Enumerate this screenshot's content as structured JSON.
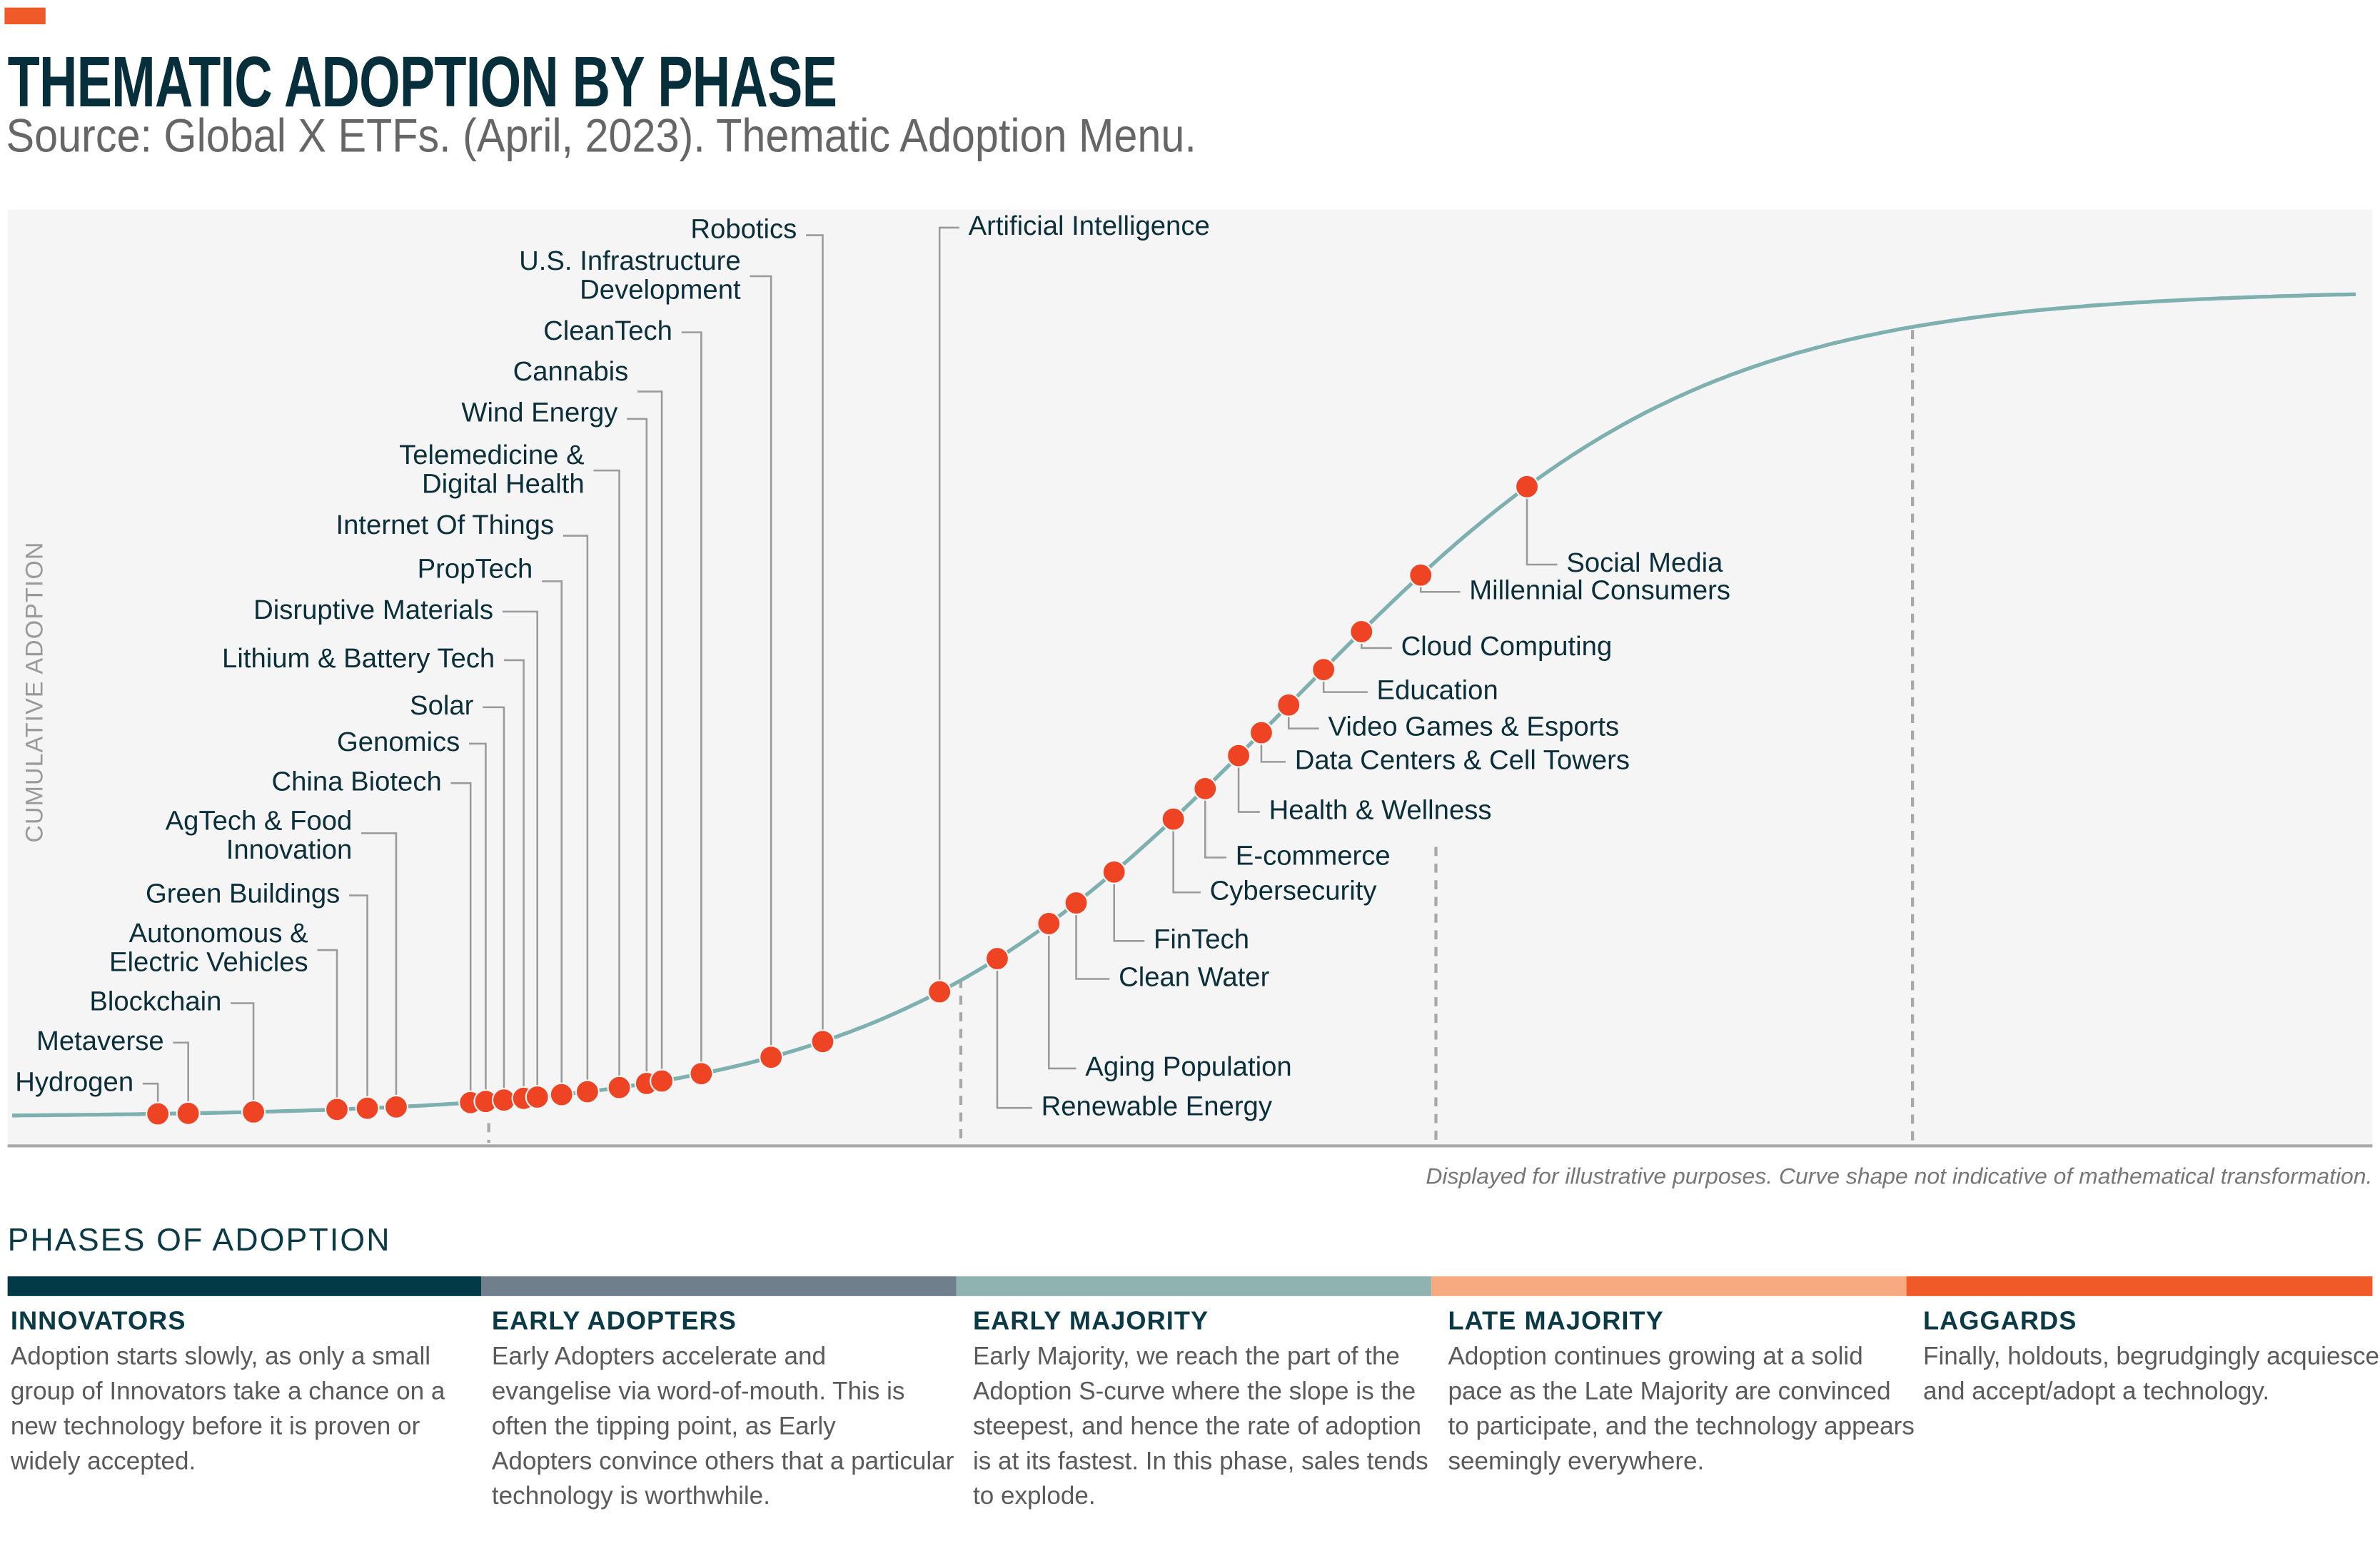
{
  "header": {
    "title": "THEMATIC ADOPTION BY PHASE",
    "source": "Source: Global X ETFs. (April, 2023). Thematic Adoption Menu."
  },
  "chart": {
    "y_axis_label": "CUMULATIVE ADOPTION",
    "footnote": "Displayed for illustrative purposes. Curve shape not indicative of mathematical transformation.",
    "colors": {
      "background": "#f5f5f5",
      "curve": "#7fb0b0",
      "dot": "#ee4423",
      "text": "#0b2f3a",
      "leader": "#9a9a9a",
      "divider": "#a8a8a8"
    },
    "themes": [
      {
        "lines": [
          "Hydrogen"
        ]
      },
      {
        "lines": [
          "Metaverse"
        ]
      },
      {
        "lines": [
          "Blockchain"
        ]
      },
      {
        "lines": [
          "Autonomous &",
          "Electric Vehicles"
        ]
      },
      {
        "lines": [
          "Green Buildings"
        ]
      },
      {
        "lines": [
          "AgTech & Food",
          "Innovation"
        ]
      },
      {
        "lines": [
          "China Biotech"
        ]
      },
      {
        "lines": [
          "Genomics"
        ]
      },
      {
        "lines": [
          "Solar"
        ]
      },
      {
        "lines": [
          "Lithium & Battery Tech"
        ]
      },
      {
        "lines": [
          "Disruptive Materials"
        ]
      },
      {
        "lines": [
          "PropTech"
        ]
      },
      {
        "lines": [
          "Internet Of Things"
        ]
      },
      {
        "lines": [
          "Telemedicine &",
          "Digital Health"
        ]
      },
      {
        "lines": [
          "Wind Energy"
        ]
      },
      {
        "lines": [
          "Cannabis"
        ]
      },
      {
        "lines": [
          "CleanTech"
        ]
      },
      {
        "lines": [
          "U.S. Infrastructure",
          "Development"
        ]
      },
      {
        "lines": [
          "Robotics"
        ]
      },
      {
        "lines": [
          "Artificial Intelligence"
        ]
      },
      {
        "lines": [
          "Renewable Energy"
        ]
      },
      {
        "lines": [
          "Aging Population"
        ]
      },
      {
        "lines": [
          "Clean Water"
        ]
      },
      {
        "lines": [
          "FinTech"
        ]
      },
      {
        "lines": [
          "Cybersecurity"
        ]
      },
      {
        "lines": [
          "E-commerce"
        ]
      },
      {
        "lines": [
          "Health & Wellness"
        ]
      },
      {
        "lines": [
          "Data Centers & Cell Towers"
        ]
      },
      {
        "lines": [
          "Video Games & Esports"
        ]
      },
      {
        "lines": [
          "Education"
        ]
      },
      {
        "lines": [
          "Cloud Computing"
        ]
      },
      {
        "lines": [
          "Millennial Consumers"
        ]
      },
      {
        "lines": [
          "Social Media"
        ]
      }
    ]
  },
  "phases": {
    "heading": "PHASES OF ADOPTION",
    "items": [
      {
        "title": "INNOVATORS",
        "color": "#023a47",
        "lines": [
          "Adoption starts slowly, as only a small",
          "group of Innovators take a chance on a",
          "new technology before it is proven or",
          "widely accepted."
        ]
      },
      {
        "title": "EARLY ADOPTERS",
        "color": "#6f7f8b",
        "lines": [
          "Early Adopters accelerate and",
          "evangelise via word-of-mouth. This is",
          "often the tipping point, as Early",
          "Adopters convince others that a particular",
          "technology is worthwhile."
        ]
      },
      {
        "title": "EARLY MAJORITY",
        "color": "#8fb3b1",
        "lines": [
          "Early Majority, we reach the part of the",
          "Adoption S-curve where the slope is the",
          "steepest, and hence the rate of adoption",
          "is at its fastest. In this phase, sales tends",
          "to explode."
        ]
      },
      {
        "title": "LATE MAJORITY",
        "color": "#f7a980",
        "lines": [
          "Adoption continues growing at a solid",
          "pace as the Late Majority are convinced",
          "to participate, and the technology appears",
          "seemingly everywhere."
        ]
      },
      {
        "title": "LAGGARDS",
        "color": "#f05a28",
        "lines": [
          "Finally, holdouts, begrudgingly acquiesce",
          "and accept/adopt a technology."
        ]
      }
    ]
  }
}
